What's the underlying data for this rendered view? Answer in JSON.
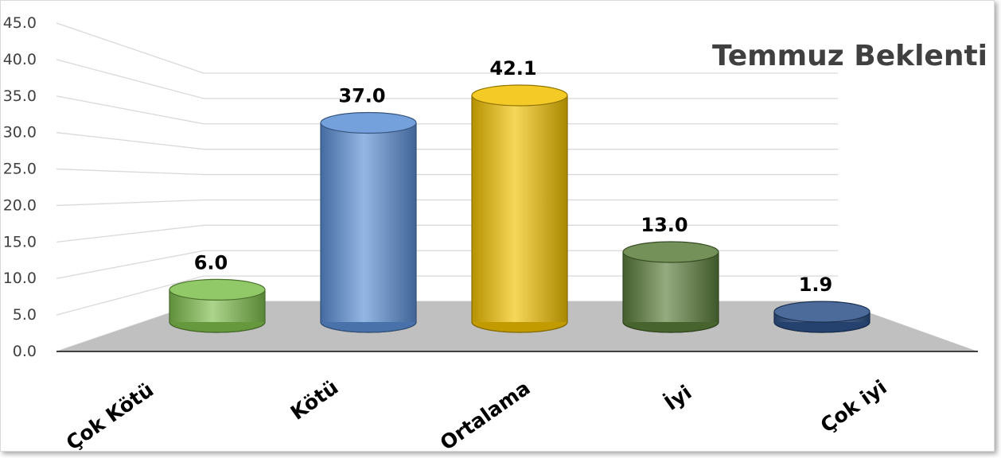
{
  "chart_data": {
    "type": "bar",
    "style": "3d-cylinder",
    "title": "Temmuz Beklenti",
    "categories": [
      "Çok Kötü",
      "Kötü",
      "Ortalama",
      "İyi",
      "Çok iyi"
    ],
    "values": [
      6.0,
      37.0,
      42.1,
      13.0,
      1.9
    ],
    "value_labels": [
      "6.0",
      "37.0",
      "42.1",
      "13.0",
      "1.9"
    ],
    "ylim": [
      0,
      45
    ],
    "yticks": [
      "0.0",
      "5.0",
      "10.0",
      "15.0",
      "20.0",
      "25.0",
      "30.0",
      "35.0",
      "40.0",
      "45.0"
    ],
    "grid": true,
    "legend": "none",
    "colors": [
      "#7fbf4d",
      "#5b8fd6",
      "#f2c200",
      "#5a7d3a",
      "#2e5188"
    ]
  }
}
